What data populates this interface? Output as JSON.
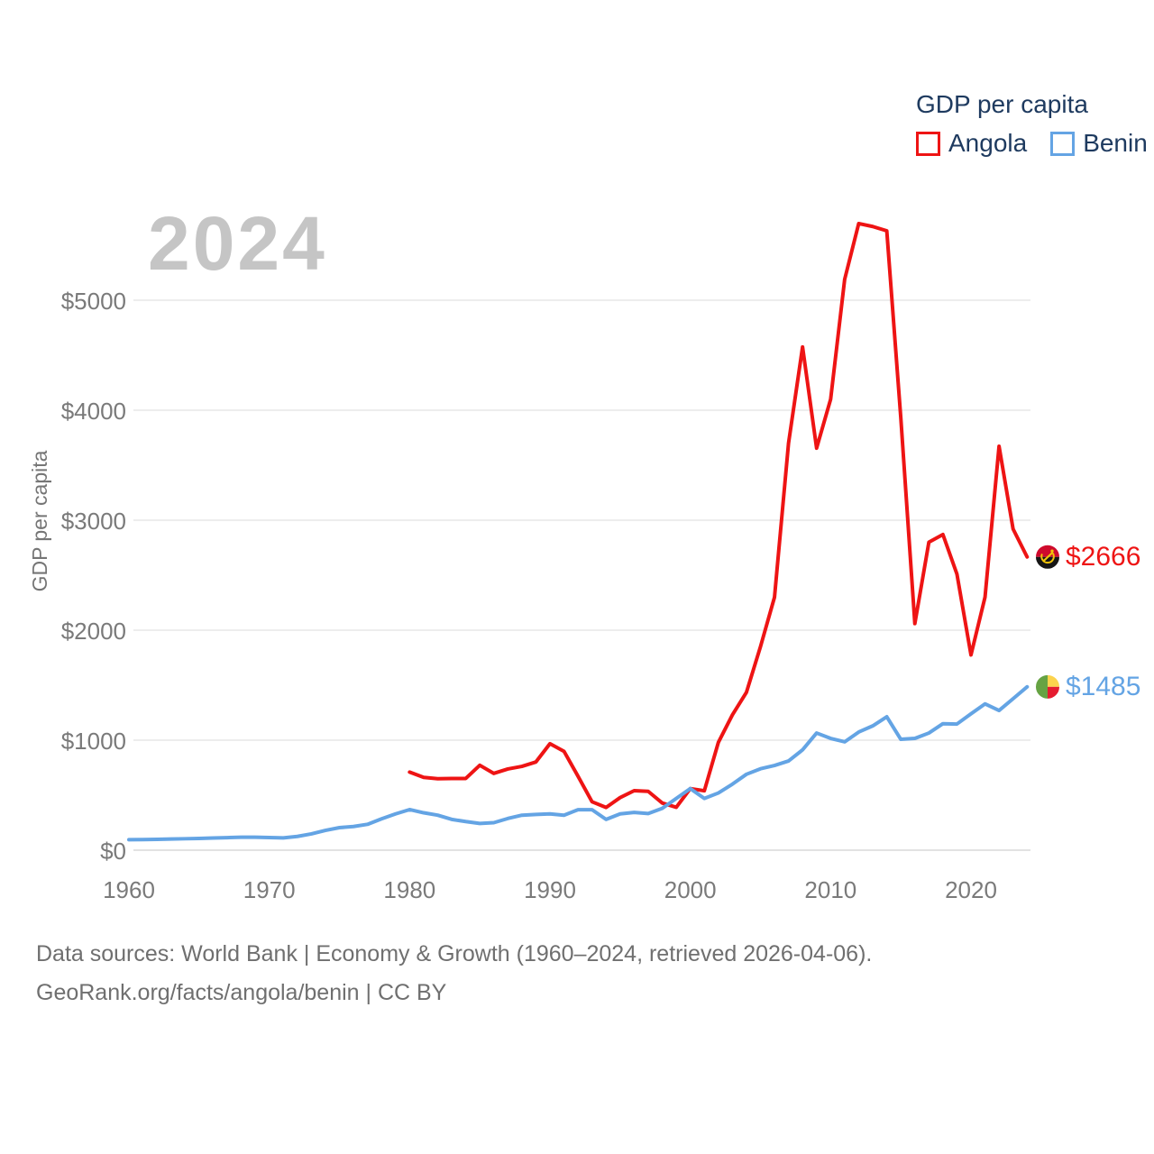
{
  "watermark": "2024",
  "legend": {
    "title": "GDP per capita",
    "items": [
      {
        "label": "Angola",
        "color": "#ee1414"
      },
      {
        "label": "Benin",
        "color": "#64a4e4"
      }
    ]
  },
  "y_axis": {
    "title": "GDP per capita"
  },
  "end_labels": [
    {
      "series": "Angola",
      "value": 2666,
      "value_label": "$2666",
      "color": "#ee1414",
      "flag_icon": "angola-flag-icon"
    },
    {
      "series": "Benin",
      "value": 1485,
      "value_label": "$1485",
      "color": "#64a4e4",
      "flag_icon": "benin-flag-icon"
    }
  ],
  "flag_colors": {
    "angola": {
      "red": "#cf0a2c",
      "black": "#161616",
      "yellow": "#f2c409"
    },
    "benin": {
      "green": "#66a343",
      "yellow": "#fcd34d",
      "red": "#e51c30"
    }
  },
  "footer": {
    "line1": "Data sources: World Bank | Economy & Growth (1960–2024, retrieved 2026-04-06).",
    "line2": "GeoRank.org/facts/angola/benin | CC BY"
  },
  "chart_data": {
    "type": "line",
    "title": "GDP per capita",
    "ylabel": "GDP per capita",
    "xlabel": "",
    "xlim": [
      1960,
      2024
    ],
    "ylim": [
      0,
      5845
    ],
    "grid": true,
    "legend_position": "top-right",
    "y_ticks": [
      {
        "value": 0,
        "label": "$0"
      },
      {
        "value": 1000,
        "label": "$1000"
      },
      {
        "value": 2000,
        "label": "$2000"
      },
      {
        "value": 3000,
        "label": "$3000"
      },
      {
        "value": 4000,
        "label": "$4000"
      },
      {
        "value": 5000,
        "label": "$5000"
      }
    ],
    "x_ticks": [
      {
        "value": 1960,
        "label": "1960"
      },
      {
        "value": 1970,
        "label": "1970"
      },
      {
        "value": 1980,
        "label": "1980"
      },
      {
        "value": 1990,
        "label": "1990"
      },
      {
        "value": 2000,
        "label": "2000"
      },
      {
        "value": 2010,
        "label": "2010"
      },
      {
        "value": 2020,
        "label": "2020"
      }
    ],
    "series": [
      {
        "name": "Angola",
        "color": "#ee1414",
        "start_year": 1980,
        "end_year": 2024,
        "values": [
          710,
          662,
          650,
          652,
          652,
          772,
          698,
          738,
          762,
          802,
          968,
          899,
          672,
          440,
          388,
          478,
          541,
          535,
          429,
          390,
          560,
          540,
          980,
          1230,
          1435,
          1850,
          2300,
          3700,
          4575,
          3655,
          4100,
          5190,
          5697,
          5670,
          5631,
          3930,
          2060,
          2800,
          2870,
          2510,
          1775,
          2300,
          3672,
          2920,
          2666
        ]
      },
      {
        "name": "Benin",
        "color": "#64a4e4",
        "start_year": 1960,
        "end_year": 2024,
        "values": [
          95,
          96,
          98,
          101,
          104,
          107,
          111,
          114,
          118,
          118,
          115,
          112,
          125,
          148,
          180,
          205,
          215,
          235,
          285,
          330,
          369,
          340,
          318,
          280,
          260,
          243,
          250,
          288,
          318,
          325,
          330,
          318,
          368,
          368,
          280,
          330,
          343,
          333,
          380,
          470,
          560,
          470,
          520,
          600,
          690,
          740,
          770,
          811,
          912,
          1065,
          1016,
          985,
          1074,
          1130,
          1213,
          1008,
          1016,
          1065,
          1150,
          1147,
          1240,
          1330,
          1270,
          1377,
          1485
        ]
      }
    ]
  }
}
